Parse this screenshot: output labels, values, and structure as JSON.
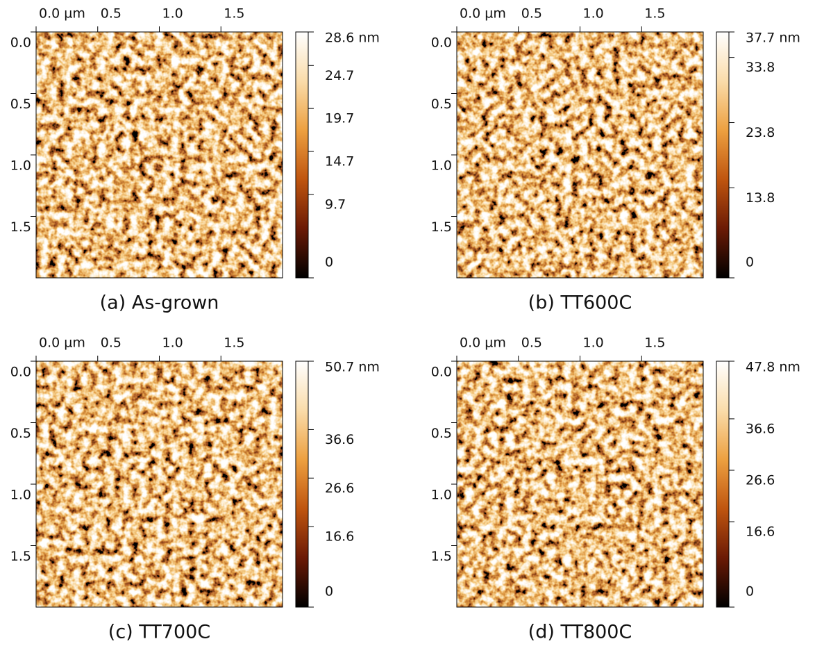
{
  "chart_data": [
    {
      "type": "heatmap",
      "caption": "(a) As-grown",
      "xlim": [
        0,
        2
      ],
      "xticks": [
        {
          "value": 0,
          "label": "0.0 µm"
        },
        {
          "value": 0.5,
          "label": "0.5"
        },
        {
          "value": 1,
          "label": "1.0"
        },
        1.5
      ],
      "ylim": [
        0,
        2
      ],
      "yticks": [
        {
          "value": 0,
          "label": "0.0"
        },
        {
          "value": 0.5,
          "label": "0.5"
        },
        {
          "value": 1,
          "label": "1.0"
        },
        1.5
      ],
      "zlim": [
        0,
        28.6
      ],
      "zticks": [
        {
          "value": 28.6,
          "label": "28.6 nm"
        },
        24.7,
        19.7,
        14.7,
        9.7,
        0
      ],
      "colormap": [
        "#000000",
        "#6b1a05",
        "#bf550f",
        "#eda040",
        "#fadcaa",
        "#ffffff"
      ]
    },
    {
      "type": "heatmap",
      "caption": "(b) TT600C",
      "xlim": [
        0,
        2
      ],
      "xticks": [
        {
          "value": 0,
          "label": "0.0 µm"
        },
        {
          "value": 0.5,
          "label": "0.5"
        },
        {
          "value": 1,
          "label": "1.0"
        },
        1.5
      ],
      "ylim": [
        0,
        2
      ],
      "yticks": [
        {
          "value": 0,
          "label": "0.0"
        },
        {
          "value": 0.5,
          "label": "0.5"
        },
        {
          "value": 1,
          "label": "1.0"
        },
        1.5
      ],
      "zlim": [
        0,
        37.7
      ],
      "zticks": [
        {
          "value": 37.7,
          "label": "37.7 nm"
        },
        33.8,
        23.8,
        13.8,
        0
      ],
      "colormap": [
        "#000000",
        "#6b1a05",
        "#bf550f",
        "#eda040",
        "#fadcaa",
        "#ffffff"
      ]
    },
    {
      "type": "heatmap",
      "caption": "(c) TT700C",
      "xlim": [
        0,
        2
      ],
      "xticks": [
        {
          "value": 0,
          "label": "0.0 µm"
        },
        {
          "value": 0.5,
          "label": "0.5"
        },
        {
          "value": 1,
          "label": "1.0"
        },
        1.5
      ],
      "ylim": [
        0,
        2
      ],
      "yticks": [
        {
          "value": 0,
          "label": "0.0"
        },
        {
          "value": 0.5,
          "label": "0.5"
        },
        {
          "value": 1,
          "label": "1.0"
        },
        1.5
      ],
      "zlim": [
        0,
        50.7
      ],
      "zticks": [
        {
          "value": 50.7,
          "label": "50.7 nm"
        },
        36.6,
        26.6,
        16.6,
        0
      ],
      "colormap": [
        "#000000",
        "#6b1a05",
        "#bf550f",
        "#eda040",
        "#fadcaa",
        "#ffffff"
      ]
    },
    {
      "type": "heatmap",
      "caption": "(d) TT800C",
      "xlim": [
        0,
        2
      ],
      "xticks": [
        {
          "value": 0,
          "label": "0.0 µm"
        },
        {
          "value": 0.5,
          "label": "0.5"
        },
        {
          "value": 1,
          "label": "1.0"
        },
        1.5
      ],
      "ylim": [
        0,
        2
      ],
      "yticks": [
        {
          "value": 0,
          "label": "0.0"
        },
        {
          "value": 0.5,
          "label": "0.5"
        },
        {
          "value": 1,
          "label": "1.0"
        },
        1.5
      ],
      "zlim": [
        0,
        47.8
      ],
      "zticks": [
        {
          "value": 47.8,
          "label": "47.8 nm"
        },
        36.6,
        26.6,
        16.6,
        0
      ],
      "colormap": [
        "#000000",
        "#6b1a05",
        "#bf550f",
        "#eda040",
        "#fadcaa",
        "#ffffff"
      ]
    }
  ]
}
